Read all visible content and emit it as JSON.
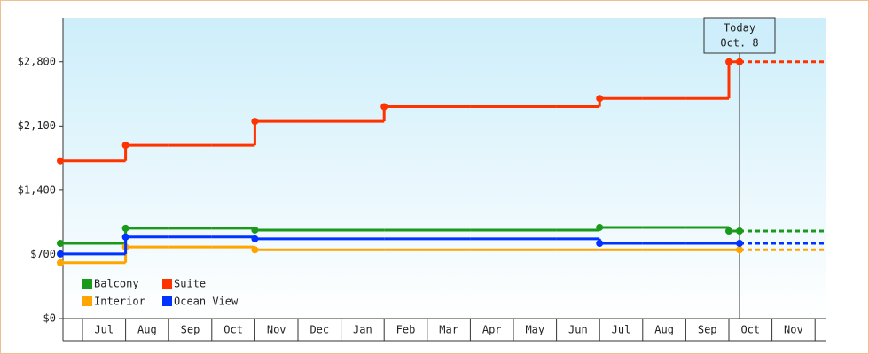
{
  "chart_data": {
    "type": "step-line",
    "categories": [
      "Jul",
      "Aug",
      "Sep",
      "Oct",
      "Nov",
      "Dec",
      "Jan",
      "Feb",
      "Mar",
      "Apr",
      "May",
      "Jun",
      "Jul",
      "Aug",
      "Sep",
      "Oct",
      "Nov"
    ],
    "series": [
      {
        "name": "Balcony",
        "color": "#1a9a1a",
        "values": [
          820,
          985,
          985,
          985,
          965,
          965,
          965,
          965,
          965,
          965,
          965,
          965,
          994,
          994,
          994,
          955,
          null
        ]
      },
      {
        "name": "Suite",
        "color": "#ff3300",
        "values": [
          1720,
          1890,
          1890,
          1890,
          2150,
          2150,
          2150,
          2310,
          2310,
          2310,
          2310,
          2310,
          2400,
          2400,
          2400,
          2800,
          null
        ]
      },
      {
        "name": "Interior",
        "color": "#ffa500",
        "values": [
          610,
          780,
          780,
          780,
          750,
          750,
          750,
          750,
          750,
          750,
          750,
          750,
          750,
          750,
          750,
          750,
          null
        ]
      },
      {
        "name": "Ocean View",
        "color": "#0033ff",
        "values": [
          705,
          890,
          890,
          890,
          870,
          870,
          870,
          870,
          870,
          870,
          870,
          870,
          820,
          820,
          820,
          820,
          null
        ]
      }
    ],
    "ylim": [
      0,
      3280
    ],
    "yticks": [
      {
        "value": 0,
        "label": "$0"
      },
      {
        "value": 700,
        "label": "$700"
      },
      {
        "value": 1400,
        "label": "$1,400"
      },
      {
        "value": 2100,
        "label": "$2,100"
      },
      {
        "value": 2800,
        "label": "$2,800"
      }
    ],
    "annotation": {
      "line1": "Today",
      "line2": "Oct. 8"
    },
    "legend": "lower-left"
  }
}
